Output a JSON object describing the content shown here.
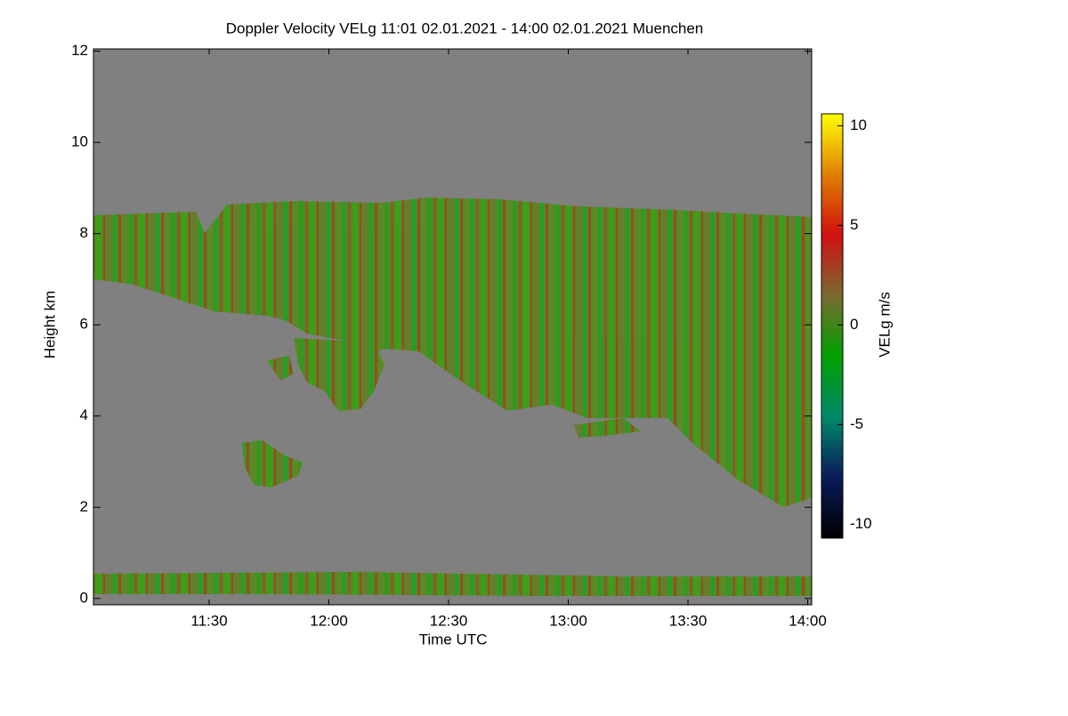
{
  "chart_data": {
    "type": "heatmap",
    "title": "Doppler Velocity VELg   11:01 02.01.2021 - 14:00 02.01.2021 Muenchen",
    "x_label": "Time UTC",
    "y_label": "Height km",
    "xlim": [
      661,
      841
    ],
    "xticks": [
      {
        "value": 690,
        "label": "11:30"
      },
      {
        "value": 720,
        "label": "12:00"
      },
      {
        "value": 750,
        "label": "12:30"
      },
      {
        "value": 780,
        "label": "13:00"
      },
      {
        "value": 810,
        "label": "13:30"
      },
      {
        "value": 840,
        "label": "14:00"
      }
    ],
    "ylim": [
      -0.14,
      12.05
    ],
    "yticks": [
      0,
      2,
      4,
      6,
      8,
      10,
      12
    ],
    "background_color": "#808080",
    "colorbar": {
      "label": "VELg m/s",
      "lim": [
        -10.7,
        10.6
      ],
      "ticks": [
        -10,
        -5,
        0,
        5,
        10
      ],
      "colormap": [
        "#000000",
        "#0a1a5a",
        "#008a6a",
        "#00a000",
        "#7a6a30",
        "#d01010",
        "#e08000",
        "#ffff00"
      ]
    }
  }
}
